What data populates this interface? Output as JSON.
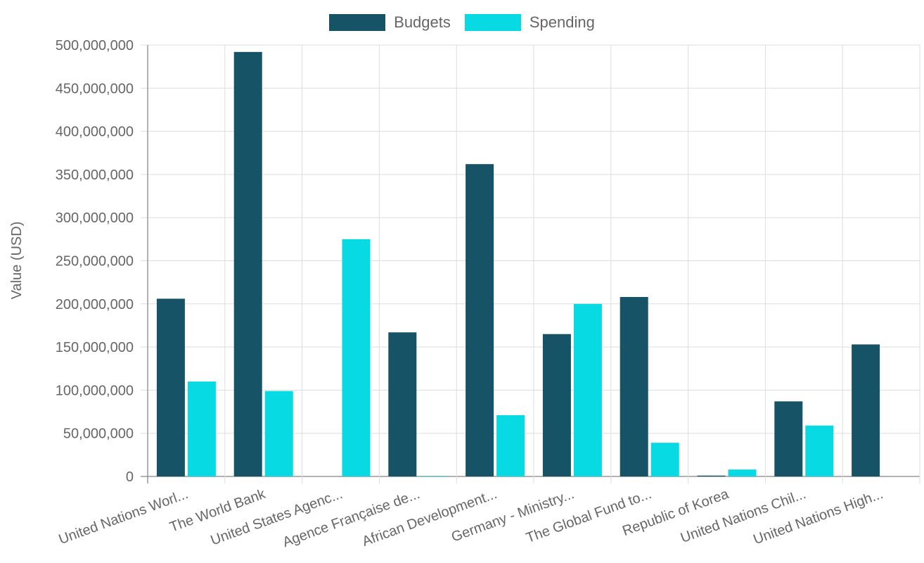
{
  "chart_data": {
    "type": "bar",
    "categories": [
      "United Nations Worl...",
      "The World Bank",
      "United States Agenc...",
      "Agence Française de...",
      "African Development...",
      "Germany - Ministry...",
      "The Global Fund to...",
      "Republic of Korea",
      "United Nations Chil...",
      "United Nations High..."
    ],
    "series": [
      {
        "name": "Budgets",
        "color": "#165366",
        "values": [
          206000000,
          492000000,
          0,
          167000000,
          362000000,
          165000000,
          208000000,
          1000000,
          87000000,
          153000000
        ]
      },
      {
        "name": "Spending",
        "color": "#07dae2",
        "values": [
          110000000,
          99000000,
          275000000,
          500000,
          71000000,
          200000000,
          39000000,
          8000000,
          59000000,
          0
        ]
      }
    ],
    "ylabel": "Value (USD)",
    "xlabel": "",
    "ylim": [
      0,
      500000000
    ],
    "y_ticks": [
      "0",
      "50,000,000",
      "100,000,000",
      "150,000,000",
      "200,000,000",
      "250,000,000",
      "300,000,000",
      "350,000,000",
      "400,000,000",
      "450,000,000",
      "500,000,000"
    ],
    "grid": true,
    "legend_position": "top"
  }
}
